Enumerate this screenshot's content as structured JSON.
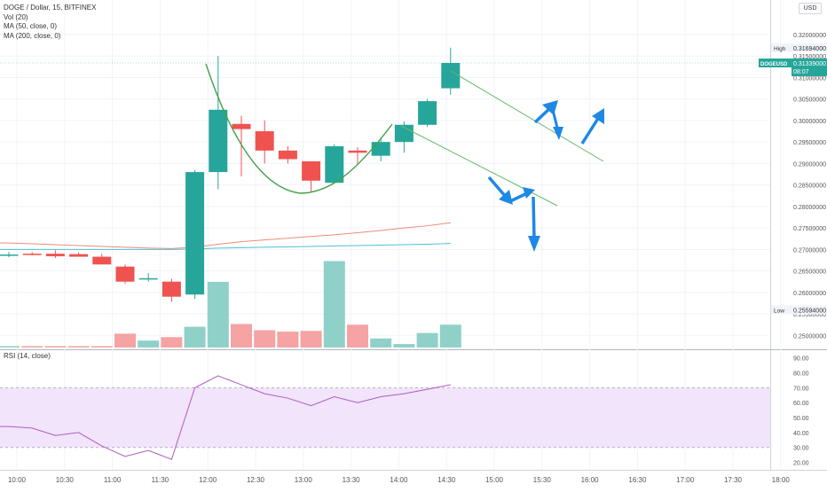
{
  "header": {
    "symbol_line": "DOGE / Dollar, 15, BITFINEX",
    "indicators": [
      "Vol (20)",
      "MA (50, close, 0)",
      "MA (200, close, 0)"
    ],
    "currency_button": "USD"
  },
  "colors": {
    "up": "#26a69a",
    "down": "#ef5350",
    "vol_up": "#8fd1c9",
    "vol_down": "#f5a3a3",
    "ma50": "#ef8a7a",
    "ma200": "#4cc0d6",
    "rsi_line": "#b05cc0",
    "rsi_band": "#f1e4fb",
    "curve": "#43a047",
    "arrow": "#1e88e5",
    "trend": "#66bb6a"
  },
  "price_axis": {
    "ticks": [
      "0.32000000",
      "0.31500000",
      "0.31000000",
      "0.30500000",
      "0.30000000",
      "0.29500000",
      "0.29000000",
      "0.28500000",
      "0.28000000",
      "0.27500000",
      "0.27000000",
      "0.26500000",
      "0.26000000",
      "0.25500000",
      "0.25000000"
    ],
    "high_label": "High",
    "high_value": "0.31694000",
    "last_symbol": "DOGEUSD",
    "last_value": "0.31339000",
    "countdown": "08:07",
    "low_label": "Low",
    "low_value": "0.25594000"
  },
  "rsi_panel": {
    "label": "RSI (14, close)",
    "ticks": [
      "90.00",
      "80.00",
      "70.00",
      "60.00",
      "50.00",
      "40.00",
      "30.00",
      "20.00"
    ],
    "upper_band": 70,
    "lower_band": 30
  },
  "time_axis": {
    "labels": [
      "10:00",
      "10:30",
      "11:00",
      "11:30",
      "12:00",
      "12:30",
      "13:00",
      "13:30",
      "14:00",
      "14:30",
      "15:00",
      "15:30",
      "16:00",
      "16:30",
      "17:00",
      "17:30",
      "18:00"
    ]
  },
  "chart_data": {
    "type": "candlestick",
    "candles": [
      {
        "o": 0.2688,
        "h": 0.2694,
        "l": 0.2682,
        "c": 0.2688
      },
      {
        "o": 0.269,
        "h": 0.2694,
        "l": 0.2686,
        "c": 0.2687
      },
      {
        "o": 0.269,
        "h": 0.2698,
        "l": 0.268,
        "c": 0.2684
      },
      {
        "o": 0.2689,
        "h": 0.2693,
        "l": 0.2684,
        "c": 0.2683
      },
      {
        "o": 0.2683,
        "h": 0.269,
        "l": 0.2665,
        "c": 0.2665
      },
      {
        "o": 0.266,
        "h": 0.2665,
        "l": 0.262,
        "c": 0.2625
      },
      {
        "o": 0.263,
        "h": 0.2645,
        "l": 0.2625,
        "c": 0.2633
      },
      {
        "o": 0.2625,
        "h": 0.2632,
        "l": 0.2578,
        "c": 0.259
      },
      {
        "o": 0.2595,
        "h": 0.2885,
        "l": 0.2585,
        "c": 0.288
      },
      {
        "o": 0.288,
        "h": 0.315,
        "l": 0.284,
        "c": 0.3025
      },
      {
        "o": 0.2992,
        "h": 0.3011,
        "l": 0.287,
        "c": 0.298
      },
      {
        "o": 0.2975,
        "h": 0.3,
        "l": 0.29,
        "c": 0.293
      },
      {
        "o": 0.293,
        "h": 0.294,
        "l": 0.29,
        "c": 0.291
      },
      {
        "o": 0.2905,
        "h": 0.2905,
        "l": 0.2835,
        "c": 0.286
      },
      {
        "o": 0.2855,
        "h": 0.2945,
        "l": 0.2855,
        "c": 0.294
      },
      {
        "o": 0.293,
        "h": 0.2938,
        "l": 0.29,
        "c": 0.2925
      },
      {
        "o": 0.2918,
        "h": 0.296,
        "l": 0.2905,
        "c": 0.295
      },
      {
        "o": 0.295,
        "h": 0.2998,
        "l": 0.2925,
        "c": 0.299
      },
      {
        "o": 0.299,
        "h": 0.305,
        "l": 0.2985,
        "c": 0.3045
      },
      {
        "o": 0.3075,
        "h": 0.31694,
        "l": 0.306,
        "c": 0.31339
      }
    ],
    "volume": [
      0.02,
      0.02,
      0.02,
      0.02,
      0.02,
      0.2,
      0.1,
      0.15,
      0.3,
      0.95,
      0.34,
      0.25,
      0.23,
      0.24,
      1.25,
      0.33,
      0.13,
      0.05,
      0.21,
      0.33
    ],
    "ma50": [
      0.2715,
      0.2713,
      0.2711,
      0.2709,
      0.2707,
      0.2705,
      0.2703,
      0.2702,
      0.2705,
      0.2712,
      0.2718,
      0.2722,
      0.2726,
      0.273,
      0.2734,
      0.2739,
      0.2744,
      0.275,
      0.2755,
      0.2762
    ],
    "ma200": [
      0.27,
      0.27,
      0.27,
      0.27,
      0.27,
      0.27,
      0.27,
      0.27,
      0.2701,
      0.2703,
      0.2704,
      0.2705,
      0.2706,
      0.2707,
      0.2708,
      0.2709,
      0.271,
      0.2711,
      0.2712,
      0.2714
    ],
    "rsi": [
      44,
      43,
      38,
      40,
      31,
      24,
      28,
      22,
      70,
      78,
      72,
      66,
      63,
      58,
      64,
      60,
      64,
      66,
      69,
      72
    ],
    "x_labels": [
      "10:00",
      "10:30",
      "11:00",
      "11:30",
      "12:00",
      "12:30",
      "13:00",
      "13:30",
      "14:00",
      "14:30",
      "15:00",
      "15:30",
      "16:00",
      "16:30",
      "17:00",
      "17:30",
      "18:00"
    ],
    "price_range": [
      0.248,
      0.3235
    ],
    "rsi_range": [
      15,
      94
    ]
  }
}
